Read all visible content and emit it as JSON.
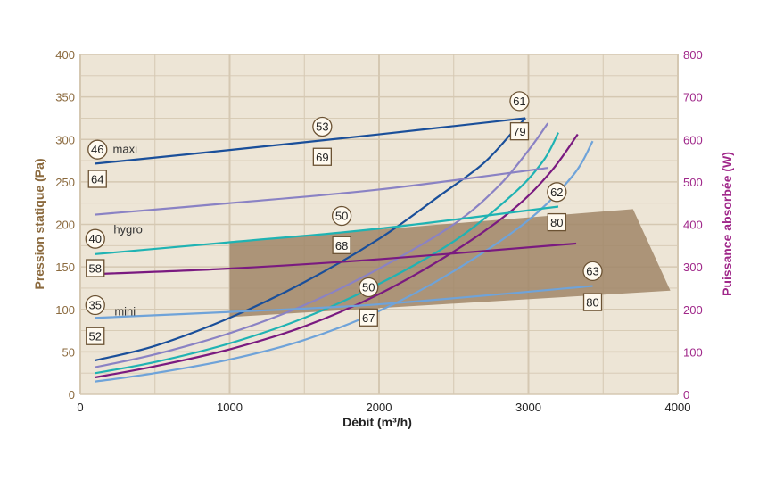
{
  "colors": {
    "left_axis": "#8b6a3e",
    "right_axis": "#a0288a",
    "plot_bg": "#ede5d6",
    "grid": "#d5c8b2",
    "band": "#a08667",
    "marker_border": "#6b5233",
    "dark_blue": "#1a4f9a",
    "lavender": "#8a82c4",
    "teal": "#1fb3b3",
    "purple": "#7a1a80",
    "light_blue": "#6fa3d9"
  },
  "chart_data": {
    "type": "line",
    "title": "",
    "xlabel": "Débit (m³/h)",
    "ylabel_left": "Pression statique (Pa)",
    "ylabel_right": "Puissance absorbée (W)",
    "xlim": [
      0,
      4000
    ],
    "ylim_left": [
      0,
      400
    ],
    "ylim_right": [
      0,
      800
    ],
    "x_ticks": [
      "0",
      "1000",
      "2000",
      "3000",
      "4000"
    ],
    "y_left_ticks": [
      "0",
      "50",
      "100",
      "150",
      "200",
      "250",
      "300",
      "350",
      "400"
    ],
    "y_right_ticks": [
      "0",
      "100",
      "200",
      "300",
      "400",
      "500",
      "600",
      "700",
      "800"
    ],
    "grid": true,
    "pressure_curves": [
      {
        "color": "#1a4f9a",
        "x": [
          100,
          500,
          1000,
          1500,
          2000,
          2400,
          2700,
          2900,
          2980
        ],
        "y": [
          40,
          57,
          90,
          132,
          183,
          233,
          272,
          310,
          325
        ]
      },
      {
        "color": "#8a82c4",
        "x": [
          100,
          500,
          1000,
          1500,
          2000,
          2500,
          2800,
          3000,
          3130
        ],
        "y": [
          32,
          47,
          72,
          105,
          148,
          200,
          245,
          287,
          319
        ]
      },
      {
        "color": "#1fb3b3",
        "x": [
          100,
          500,
          1000,
          1500,
          2000,
          2500,
          2900,
          3100,
          3200
        ],
        "y": [
          25,
          38,
          60,
          90,
          130,
          180,
          236,
          275,
          308
        ]
      },
      {
        "color": "#7a1a80",
        "x": [
          100,
          500,
          1000,
          1500,
          2000,
          2500,
          2900,
          3150,
          3330
        ],
        "y": [
          20,
          33,
          53,
          80,
          118,
          168,
          218,
          262,
          306
        ]
      },
      {
        "color": "#6fa3d9",
        "x": [
          100,
          500,
          1000,
          1500,
          2000,
          2500,
          3000,
          3300,
          3430
        ],
        "y": [
          15,
          25,
          41,
          64,
          98,
          145,
          205,
          258,
          298
        ]
      }
    ],
    "power_curves": [
      {
        "label": "maxi",
        "color": "#1a4f9a",
        "x": [
          100,
          1000,
          2000,
          2980
        ],
        "y": [
          543,
          575,
          612,
          650
        ]
      },
      {
        "label": "",
        "color": "#8a82c4",
        "x": [
          100,
          1000,
          2000,
          3130
        ],
        "y": [
          423,
          450,
          482,
          533
        ]
      },
      {
        "label": "hygro",
        "color": "#1fb3b3",
        "x": [
          100,
          1000,
          2000,
          3200
        ],
        "y": [
          330,
          358,
          390,
          442
        ]
      },
      {
        "label": "",
        "color": "#7a1a80",
        "x": [
          100,
          1000,
          2000,
          3320
        ],
        "y": [
          283,
          296,
          318,
          355
        ]
      },
      {
        "label": "mini",
        "color": "#6fa3d9",
        "x": [
          100,
          1000,
          2000,
          3430
        ],
        "y": [
          180,
          194,
          212,
          255
        ]
      }
    ],
    "operating_zone": [
      [
        1000,
        180
      ],
      [
        3700,
        218
      ],
      [
        3950,
        122
      ],
      [
        1000,
        91
      ]
    ],
    "circle_markers": [
      {
        "text": "46",
        "x": 115,
        "y": 288
      },
      {
        "text": "53",
        "x": 1620,
        "y": 315
      },
      {
        "text": "61",
        "x": 2940,
        "y": 345
      },
      {
        "text": "40",
        "x": 100,
        "y": 183
      },
      {
        "text": "50",
        "x": 1750,
        "y": 210
      },
      {
        "text": "62",
        "x": 3190,
        "y": 238
      },
      {
        "text": "50",
        "x": 1930,
        "y": 126
      },
      {
        "text": "35",
        "x": 100,
        "y": 105
      },
      {
        "text": "63",
        "x": 3430,
        "y": 145
      }
    ],
    "square_markers": [
      {
        "text": "64",
        "x": 115,
        "y": 253
      },
      {
        "text": "69",
        "x": 1620,
        "y": 279
      },
      {
        "text": "79",
        "x": 2940,
        "y": 309
      },
      {
        "text": "58",
        "x": 100,
        "y": 148
      },
      {
        "text": "68",
        "x": 1750,
        "y": 175
      },
      {
        "text": "80",
        "x": 3190,
        "y": 202
      },
      {
        "text": "67",
        "x": 1930,
        "y": 90
      },
      {
        "text": "52",
        "x": 100,
        "y": 68
      },
      {
        "text": "80",
        "x": 3430,
        "y": 108
      }
    ],
    "curve_labels": [
      {
        "text": "maxi",
        "x": 300,
        "y": 289
      },
      {
        "text": "hygro",
        "x": 320,
        "y": 195
      },
      {
        "text": "mini",
        "x": 300,
        "y": 98
      }
    ]
  }
}
